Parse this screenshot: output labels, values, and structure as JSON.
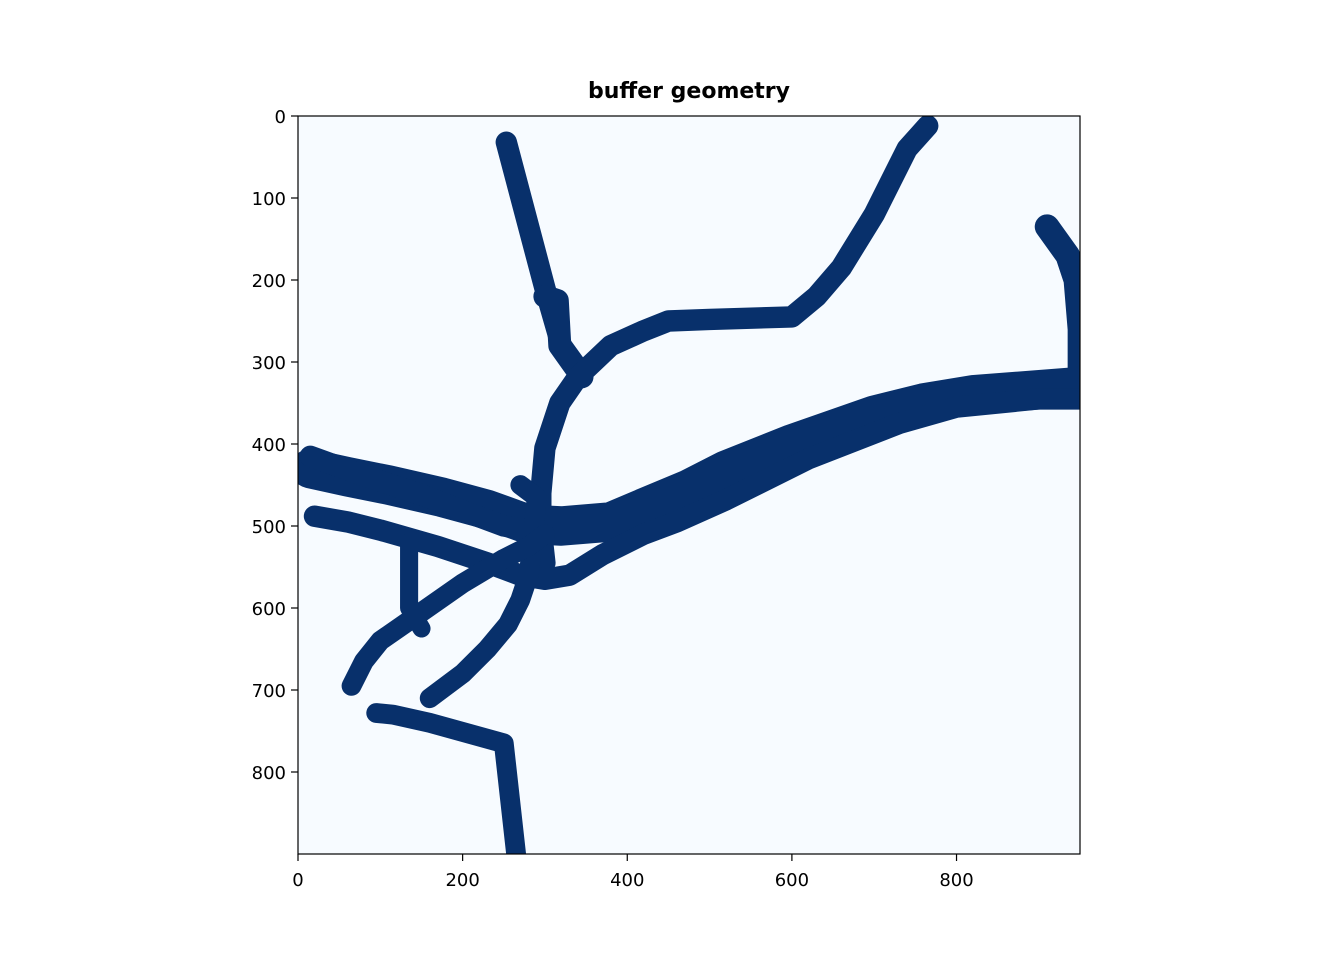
{
  "chart_data": {
    "type": "heatmap",
    "title": "buffer geometry",
    "xlabel": "",
    "ylabel": "",
    "xlim": [
      0,
      950
    ],
    "ylim": [
      900,
      0
    ],
    "x_ticks": [
      0,
      200,
      400,
      600,
      800
    ],
    "y_ticks": [
      0,
      100,
      200,
      300,
      400,
      500,
      600,
      700,
      800
    ],
    "grid": false,
    "colormap": "Blues",
    "background_color": "#f7fbff",
    "foreground_color": "#08306b",
    "paths": [
      {
        "width": 26,
        "points": [
          [
            253,
            32
          ],
          [
            300,
            210
          ],
          [
            320,
            280
          ],
          [
            345,
            315
          ]
        ]
      },
      {
        "width": 28,
        "points": [
          [
            300,
            220
          ],
          [
            315,
            225
          ],
          [
            318,
            280
          ],
          [
            345,
            318
          ]
        ]
      },
      {
        "width": 26,
        "points": [
          [
            765,
            12
          ],
          [
            740,
            40
          ],
          [
            700,
            120
          ],
          [
            660,
            185
          ],
          [
            630,
            220
          ],
          [
            600,
            245
          ],
          [
            500,
            248
          ],
          [
            450,
            250
          ],
          [
            420,
            262
          ],
          [
            380,
            280
          ],
          [
            340,
            318
          ],
          [
            318,
            350
          ],
          [
            300,
            405
          ],
          [
            295,
            460
          ],
          [
            295,
            500
          ],
          [
            300,
            545
          ]
        ]
      },
      {
        "width": 30,
        "points": [
          [
            910,
            135
          ],
          [
            935,
            170
          ],
          [
            945,
            200
          ],
          [
            950,
            260
          ],
          [
            950,
            340
          ]
        ]
      },
      {
        "width": 48,
        "points": [
          [
            950,
            330
          ],
          [
            820,
            340
          ],
          [
            760,
            350
          ],
          [
            700,
            365
          ],
          [
            600,
            400
          ],
          [
            520,
            432
          ],
          [
            475,
            455
          ],
          [
            420,
            478
          ],
          [
            380,
            495
          ],
          [
            320,
            500
          ],
          [
            280,
            498
          ],
          [
            230,
            480
          ],
          [
            175,
            465
          ],
          [
            110,
            450
          ],
          [
            60,
            440
          ],
          [
            15,
            430
          ]
        ]
      },
      {
        "width": 26,
        "points": [
          [
            950,
            345
          ],
          [
            900,
            345
          ],
          [
            800,
            355
          ],
          [
            730,
            375
          ],
          [
            620,
            418
          ],
          [
            560,
            448
          ],
          [
            520,
            468
          ],
          [
            460,
            495
          ],
          [
            420,
            510
          ],
          [
            370,
            535
          ],
          [
            330,
            560
          ],
          [
            300,
            565
          ],
          [
            270,
            560
          ],
          [
            230,
            545
          ],
          [
            170,
            525
          ],
          [
            100,
            505
          ],
          [
            60,
            495
          ],
          [
            20,
            488
          ]
        ]
      },
      {
        "width": 26,
        "points": [
          [
            15,
            415
          ],
          [
            70,
            435
          ],
          [
            150,
            462
          ],
          [
            210,
            485
          ],
          [
            250,
            500
          ],
          [
            280,
            505
          ]
        ]
      },
      {
        "width": 24,
        "points": [
          [
            270,
            450
          ],
          [
            290,
            465
          ],
          [
            285,
            520
          ],
          [
            280,
            560
          ],
          [
            270,
            590
          ],
          [
            255,
            620
          ],
          [
            230,
            650
          ],
          [
            200,
            680
          ],
          [
            160,
            710
          ]
        ]
      },
      {
        "width": 24,
        "points": [
          [
            300,
            510
          ],
          [
            280,
            525
          ],
          [
            250,
            540
          ],
          [
            200,
            570
          ],
          [
            150,
            605
          ],
          [
            100,
            640
          ],
          [
            80,
            665
          ],
          [
            65,
            695
          ]
        ]
      },
      {
        "width": 22,
        "points": [
          [
            135,
            520
          ],
          [
            135,
            600
          ],
          [
            150,
            625
          ]
        ]
      },
      {
        "width": 24,
        "points": [
          [
            95,
            728
          ],
          [
            115,
            730
          ],
          [
            160,
            740
          ],
          [
            250,
            765
          ],
          [
            265,
            900
          ]
        ]
      }
    ]
  }
}
